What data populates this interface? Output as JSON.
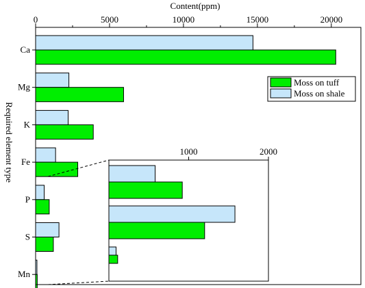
{
  "chart_data": {
    "type": "bar",
    "orientation": "horizontal",
    "title": "",
    "xlabel": "Content(ppm)",
    "ylabel": "Required element type",
    "xlim": [
      0,
      22000
    ],
    "xticks": [
      "0",
      "5000",
      "10000",
      "15000",
      "20000"
    ],
    "categories": [
      "Ca",
      "Mg",
      "K",
      "Fe",
      "P",
      "S",
      "Mn"
    ],
    "series": [
      {
        "name": "Moss on shale",
        "color": "#c6e6fa",
        "values": [
          14700,
          2250,
          2200,
          1350,
          580,
          1580,
          90
        ]
      },
      {
        "name": "Moss on tuff",
        "color": "#00ee00",
        "values": [
          20300,
          5950,
          3900,
          2850,
          920,
          1200,
          110
        ]
      }
    ],
    "legend_position": "upper-right",
    "legend_order": [
      "Moss on tuff",
      "Moss on shale"
    ],
    "grid": false,
    "inset": {
      "categories": [
        "P",
        "S",
        "Mn"
      ],
      "xlim": [
        0,
        2000
      ],
      "xticks": [
        "1000",
        "2000"
      ]
    }
  }
}
